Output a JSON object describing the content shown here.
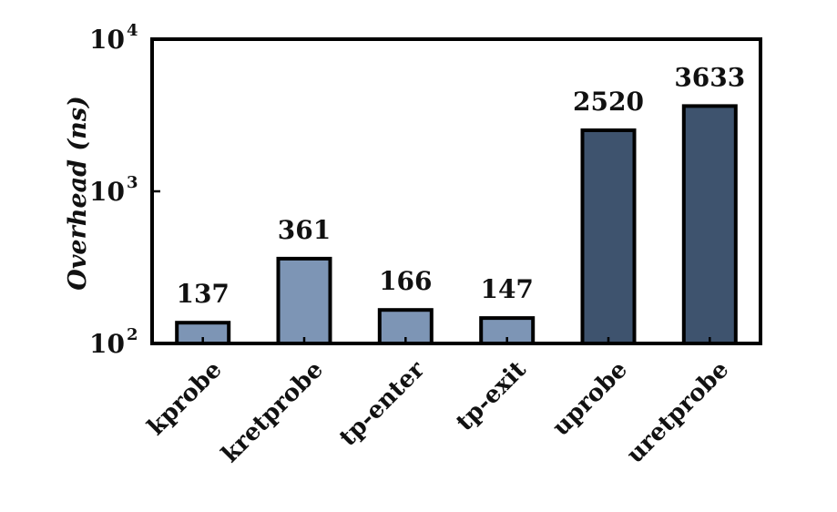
{
  "chart_data": {
    "type": "bar",
    "title": "",
    "xlabel": "",
    "ylabel": "Overhead (ns)",
    "yscale": "log",
    "ylim": [
      100,
      10000
    ],
    "yticks": [
      {
        "base": "10",
        "exp": "2",
        "value": 100
      },
      {
        "base": "10",
        "exp": "3",
        "value": 1000
      },
      {
        "base": "10",
        "exp": "4",
        "value": 10000
      }
    ],
    "grid": false,
    "legend": "none",
    "categories": [
      "kprobe",
      "kretprobe",
      "tp-enter",
      "tp-exit",
      "uprobe",
      "uretprobe"
    ],
    "values": [
      137,
      361,
      166,
      147,
      2520,
      3633
    ],
    "data_labels": [
      "137",
      "361",
      "166",
      "147",
      "2520",
      "3633"
    ],
    "bar_colors": [
      "#7d95b5",
      "#7d95b5",
      "#7d95b5",
      "#7d95b5",
      "#3e536e",
      "#3e536e"
    ]
  }
}
